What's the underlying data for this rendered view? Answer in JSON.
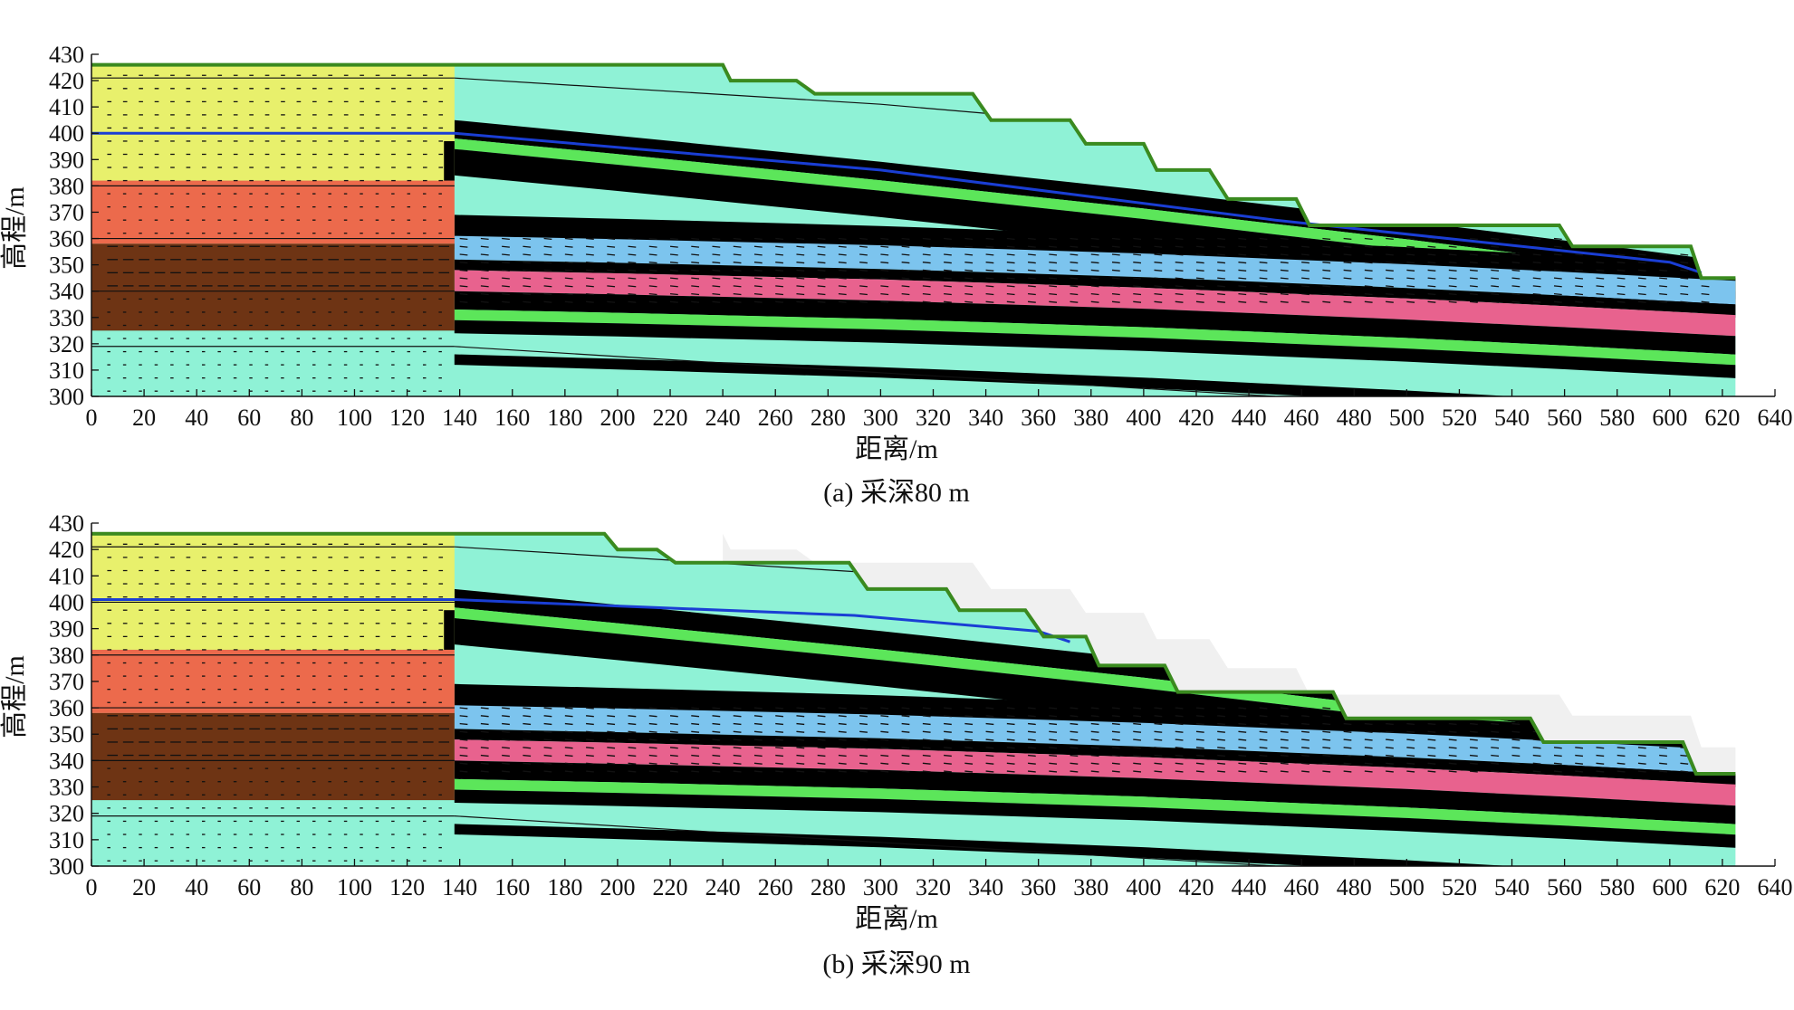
{
  "panels": [
    {
      "id": "a",
      "caption": "(a) 采深80 m",
      "xlabel": "距离/m",
      "ylabel": "高程/m",
      "xticks": [
        0,
        20,
        40,
        60,
        80,
        100,
        120,
        140,
        160,
        180,
        200,
        220,
        240,
        260,
        280,
        300,
        320,
        340,
        360,
        380,
        400,
        420,
        440,
        460,
        480,
        500,
        520,
        540,
        560,
        580,
        600,
        620,
        640
      ],
      "yticks": [
        300,
        310,
        320,
        330,
        340,
        350,
        360,
        370,
        380,
        390,
        400,
        410,
        420,
        430
      ],
      "xlim": [
        0,
        640
      ],
      "ylim": [
        300,
        430
      ],
      "mining_depth_m": 80,
      "surface": [
        [
          0,
          426
        ],
        [
          240,
          426
        ],
        [
          243,
          420
        ],
        [
          268,
          420
        ],
        [
          275,
          415
        ],
        [
          335,
          415
        ],
        [
          342,
          405
        ],
        [
          372,
          405
        ],
        [
          378,
          396
        ],
        [
          400,
          396
        ],
        [
          405,
          386
        ],
        [
          425,
          386
        ],
        [
          432,
          375
        ],
        [
          458,
          375
        ],
        [
          463,
          365
        ],
        [
          558,
          365
        ],
        [
          563,
          357
        ],
        [
          608,
          357
        ],
        [
          612,
          345
        ],
        [
          625,
          345
        ]
      ],
      "groundwater": [
        [
          0,
          400
        ],
        [
          138,
          400
        ],
        [
          300,
          386
        ],
        [
          450,
          367
        ],
        [
          600,
          351
        ],
        [
          612,
          347
        ]
      ],
      "ghost_surface": []
    },
    {
      "id": "b",
      "caption": "(b) 采深90 m",
      "xlabel": "距离/m",
      "ylabel": "高程/m",
      "xticks": [
        0,
        20,
        40,
        60,
        80,
        100,
        120,
        140,
        160,
        180,
        200,
        220,
        240,
        260,
        280,
        300,
        320,
        340,
        360,
        380,
        400,
        420,
        440,
        460,
        480,
        500,
        520,
        540,
        560,
        580,
        600,
        620,
        640
      ],
      "yticks": [
        300,
        310,
        320,
        330,
        340,
        350,
        360,
        370,
        380,
        390,
        400,
        410,
        420,
        430
      ],
      "xlim": [
        0,
        640
      ],
      "ylim": [
        300,
        430
      ],
      "mining_depth_m": 90,
      "surface": [
        [
          0,
          426
        ],
        [
          195,
          426
        ],
        [
          200,
          420
        ],
        [
          215,
          420
        ],
        [
          222,
          415
        ],
        [
          288,
          415
        ],
        [
          295,
          405
        ],
        [
          325,
          405
        ],
        [
          330,
          397
        ],
        [
          355,
          397
        ],
        [
          362,
          387
        ],
        [
          378,
          387
        ],
        [
          383,
          376
        ],
        [
          408,
          376
        ],
        [
          413,
          366
        ],
        [
          472,
          366
        ],
        [
          477,
          356
        ],
        [
          547,
          356
        ],
        [
          552,
          347
        ],
        [
          605,
          347
        ],
        [
          610,
          335
        ],
        [
          625,
          335
        ]
      ],
      "groundwater": [
        [
          0,
          401
        ],
        [
          138,
          401
        ],
        [
          290,
          395
        ],
        [
          360,
          389
        ],
        [
          372,
          385
        ]
      ],
      "ghost_surface": [
        [
          240,
          426
        ],
        [
          243,
          420
        ],
        [
          268,
          420
        ],
        [
          275,
          415
        ],
        [
          335,
          415
        ],
        [
          342,
          405
        ],
        [
          372,
          405
        ],
        [
          378,
          396
        ],
        [
          400,
          396
        ],
        [
          405,
          386
        ],
        [
          425,
          386
        ],
        [
          432,
          375
        ],
        [
          458,
          375
        ],
        [
          463,
          365
        ],
        [
          558,
          365
        ],
        [
          563,
          357
        ],
        [
          608,
          357
        ],
        [
          612,
          345
        ],
        [
          625,
          345
        ]
      ]
    }
  ],
  "colors": {
    "aquamarine": "#8ff2d6",
    "black": "#000000",
    "yellow": "#e8f06c",
    "orange": "#ec6a4c",
    "brown": "#6e3414",
    "green": "#5ce65a",
    "light_blue": "#7cc4ee",
    "pink": "#e8628e",
    "surface_line": "#3a8a1f",
    "water_line": "#1a3ed4",
    "ghost": "#f0f0f0"
  }
}
